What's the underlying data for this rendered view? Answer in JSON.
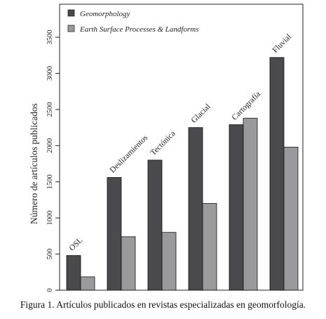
{
  "caption": "Figura 1. Artículos publicados en revistas especializadas en geomorfología.",
  "chart_data": {
    "type": "bar",
    "ylabel": "Número de artículos publicados",
    "ylim": [
      0,
      3500
    ],
    "yticks": [
      0,
      500,
      1000,
      1500,
      2000,
      2500,
      3000,
      3500
    ],
    "categories": [
      "OSL",
      "Deslizamientos",
      "Tectónica",
      "Glacial",
      "Cartografía",
      "Fluvial"
    ],
    "series": [
      {
        "name": "Geomorphology",
        "color": "#4a4a4c",
        "values": [
          480,
          1560,
          1800,
          2250,
          2290,
          3220
        ]
      },
      {
        "name": "Earth Surface Processes & Landforms",
        "color": "#9a9a9c",
        "values": [
          185,
          740,
          800,
          1200,
          2380,
          1980
        ]
      }
    ],
    "legend": "top-left"
  }
}
